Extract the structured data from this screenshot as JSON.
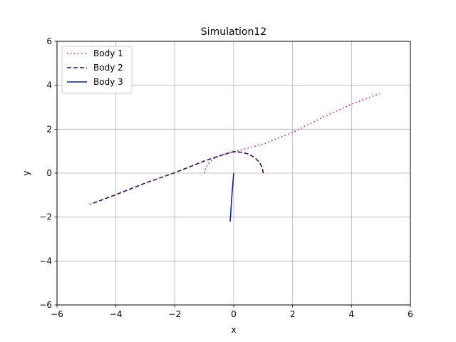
{
  "chart_data": {
    "type": "line",
    "title": "Simulation12",
    "xlabel": "x",
    "ylabel": "y",
    "xlim": [
      -6,
      6
    ],
    "ylim": [
      -6,
      6
    ],
    "xticks": [
      -6,
      -4,
      -2,
      0,
      2,
      4,
      6
    ],
    "yticks": [
      -6,
      -4,
      -2,
      0,
      2,
      4,
      6
    ],
    "xtick_labels": [
      "−6",
      "−4",
      "−2",
      "0",
      "2",
      "4",
      "6"
    ],
    "ytick_labels": [
      "−6",
      "−4",
      "−2",
      "0",
      "2",
      "4",
      "6"
    ],
    "grid": true,
    "legend_position": "upper-left",
    "series": [
      {
        "name": "Body 1",
        "color": "#c2185b",
        "linestyle": "dotted",
        "points": [
          [
            -1.0,
            0.0
          ],
          [
            -0.95,
            0.25
          ],
          [
            -0.82,
            0.5
          ],
          [
            -0.6,
            0.72
          ],
          [
            -0.3,
            0.88
          ],
          [
            0.0,
            0.97
          ],
          [
            0.5,
            1.15
          ],
          [
            1.0,
            1.32
          ],
          [
            2.0,
            1.85
          ],
          [
            3.0,
            2.53
          ],
          [
            4.0,
            3.14
          ],
          [
            4.95,
            3.62
          ]
        ]
      },
      {
        "name": "Body 2",
        "color": "#3b0a4f",
        "linestyle": "dashed",
        "points": [
          [
            1.0,
            0.0
          ],
          [
            0.97,
            0.26
          ],
          [
            0.87,
            0.5
          ],
          [
            0.71,
            0.71
          ],
          [
            0.5,
            0.87
          ],
          [
            0.26,
            0.95
          ],
          [
            0.0,
            0.98
          ],
          [
            -0.5,
            0.78
          ],
          [
            -1.0,
            0.55
          ],
          [
            -2.0,
            0.02
          ],
          [
            -3.0,
            -0.45
          ],
          [
            -4.0,
            -0.98
          ],
          [
            -4.88,
            -1.42
          ]
        ]
      },
      {
        "name": "Body 3",
        "color": "#0d2a6e",
        "linestyle": "solid",
        "points": [
          [
            0.0,
            0.0
          ],
          [
            -0.03,
            -0.5
          ],
          [
            -0.06,
            -1.0
          ],
          [
            -0.09,
            -1.6
          ],
          [
            -0.12,
            -2.2
          ]
        ]
      }
    ]
  }
}
